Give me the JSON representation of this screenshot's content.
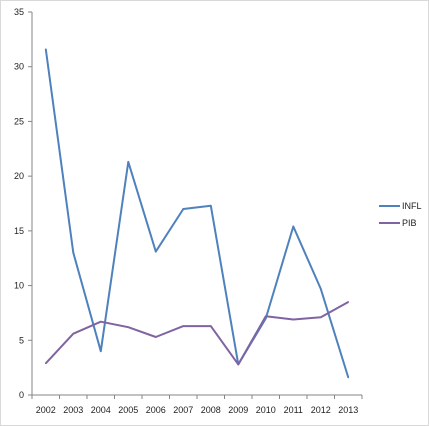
{
  "chart_data": {
    "type": "line",
    "title": "",
    "xlabel": "",
    "ylabel": "",
    "categories": [
      "2002",
      "2003",
      "2004",
      "2005",
      "2006",
      "2007",
      "2008",
      "2009",
      "2010",
      "2011",
      "2012",
      "2013"
    ],
    "yticks": [
      "0",
      "5",
      "10",
      "15",
      "20",
      "25",
      "30",
      "35"
    ],
    "ylim": [
      0,
      35
    ],
    "grid": false,
    "legend_position": "right",
    "series": [
      {
        "name": "INFL",
        "color": "#4f81bd",
        "values": [
          31.6,
          13.0,
          4.0,
          21.3,
          13.1,
          17.0,
          17.3,
          2.8,
          7.0,
          15.4,
          9.7,
          1.6
        ]
      },
      {
        "name": "PIB",
        "color": "#8064a2",
        "values": [
          2.9,
          5.6,
          6.7,
          6.2,
          5.3,
          6.3,
          6.3,
          2.8,
          7.2,
          6.9,
          7.1,
          8.5
        ]
      }
    ]
  }
}
